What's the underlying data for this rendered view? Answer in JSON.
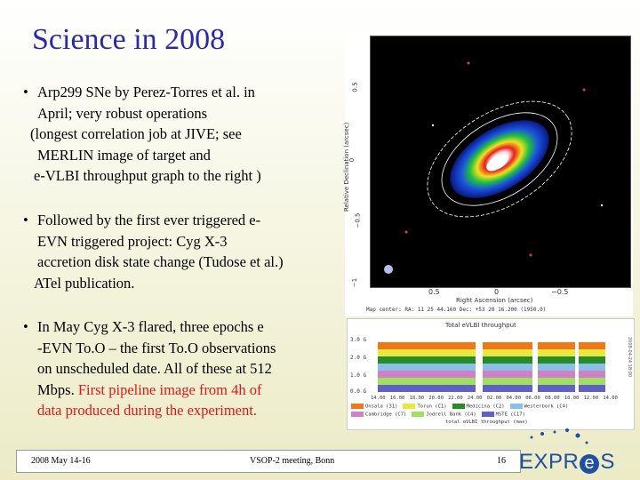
{
  "slide": {
    "title": "Science in 2008",
    "bullets": [
      {
        "lines": [
          "Arp299 SNe by Perez-Torres et al. in",
          "April; very robust operations",
          "(longest correlation job at JIVE; see",
          "MERLIN image of target and",
          "e-VLBI throughput graph to the right )"
        ]
      },
      {
        "lines": [
          "Followed by the first ever triggered e-",
          "EVN triggered project: Cyg X-3",
          "accretion disk state change (Tudose et al.)",
          "ATel publication."
        ]
      },
      {
        "lines": [
          "In May Cyg X-3 flared, three epochs      e",
          "-EVN To.O – the first To.O observations",
          "on unscheduled date. All of these at 512",
          "Mbps."
        ],
        "red_lines": [
          "First pipeline image from 4h of",
          "data produced during the experiment."
        ]
      }
    ],
    "bullet_glyph": "•"
  },
  "radio_map": {
    "ylabel": "Relative Declination  (arcsec)",
    "xlabel": "Right Ascension  (arcsec)",
    "yticks": [
      "0.5",
      "0",
      "−0.5",
      "−1"
    ],
    "xticks": [
      "0.5",
      "0",
      "−0.5"
    ],
    "map_center": "Map center:  RA: 11  25 44.160    Dec: +53 20 16.200  (1950.0)"
  },
  "throughput": {
    "title": "Total eVLBI throughput",
    "yticks": [
      "3.0 G",
      "2.0 G",
      "1.0 G",
      "0.0 G"
    ],
    "xticks": [
      "14.00",
      "16.00",
      "18.00",
      "20.00",
      "22.00",
      "24.00",
      "02.00",
      "04.00",
      "06.00",
      "08.00",
      "10.00",
      "12.00",
      "14.00"
    ],
    "legend": [
      {
        "label": "Onsala (31)",
        "color": "#f07818"
      },
      {
        "label": "Torun (C1)",
        "color": "#e8e840"
      },
      {
        "label": "Medicina (C2)",
        "color": "#2a8a2a"
      },
      {
        "label": "Westerbork (C4)",
        "color": "#8ac0e8"
      },
      {
        "label": "Cambridge (C7)",
        "color": "#d080c8"
      },
      {
        "label": "Jodrell Bank (C4)",
        "color": "#a0e060"
      },
      {
        "label": "MSTE (C17)",
        "color": "#6060c8"
      }
    ],
    "footer": "total eVLBI throughput (max)",
    "side_label": "2008-04-24 18:00",
    "stack_colors": [
      "#f07818",
      "#e8e840",
      "#2a8a2a",
      "#8ac0e8",
      "#d080c8",
      "#a0e060",
      "#6060c8"
    ]
  },
  "footer": {
    "date": "2008 May 14-16",
    "meeting": "VSOP-2 meeting, Bonn",
    "page": "16"
  },
  "logo": {
    "text_before": "EXPR",
    "text_e": "e",
    "text_after": "S"
  }
}
